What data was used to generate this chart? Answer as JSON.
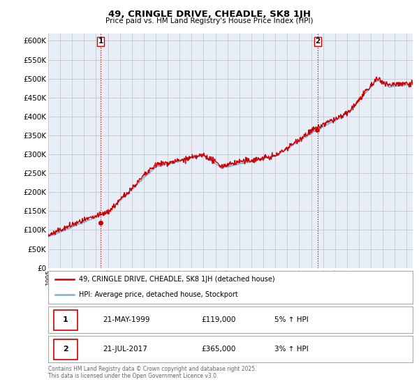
{
  "title": "49, CRINGLE DRIVE, CHEADLE, SK8 1JH",
  "subtitle": "Price paid vs. HM Land Registry's House Price Index (HPI)",
  "ylim": [
    0,
    620000
  ],
  "xlim_start": 1995.0,
  "xlim_end": 2025.5,
  "sale1_date": 1999.38,
  "sale1_price": 119000,
  "sale2_date": 2017.54,
  "sale2_price": 365000,
  "legend_line1": "49, CRINGLE DRIVE, CHEADLE, SK8 1JH (detached house)",
  "legend_line2": "HPI: Average price, detached house, Stockport",
  "footnote": "Contains HM Land Registry data © Crown copyright and database right 2025.\nThis data is licensed under the Open Government Licence v3.0.",
  "hpi_color": "#7bafd4",
  "price_color": "#cc0000",
  "vline_color": "#cc0000",
  "grid_color": "#cccccc",
  "bg_color": "#ffffff",
  "plot_bg_color": "#e8eef8"
}
